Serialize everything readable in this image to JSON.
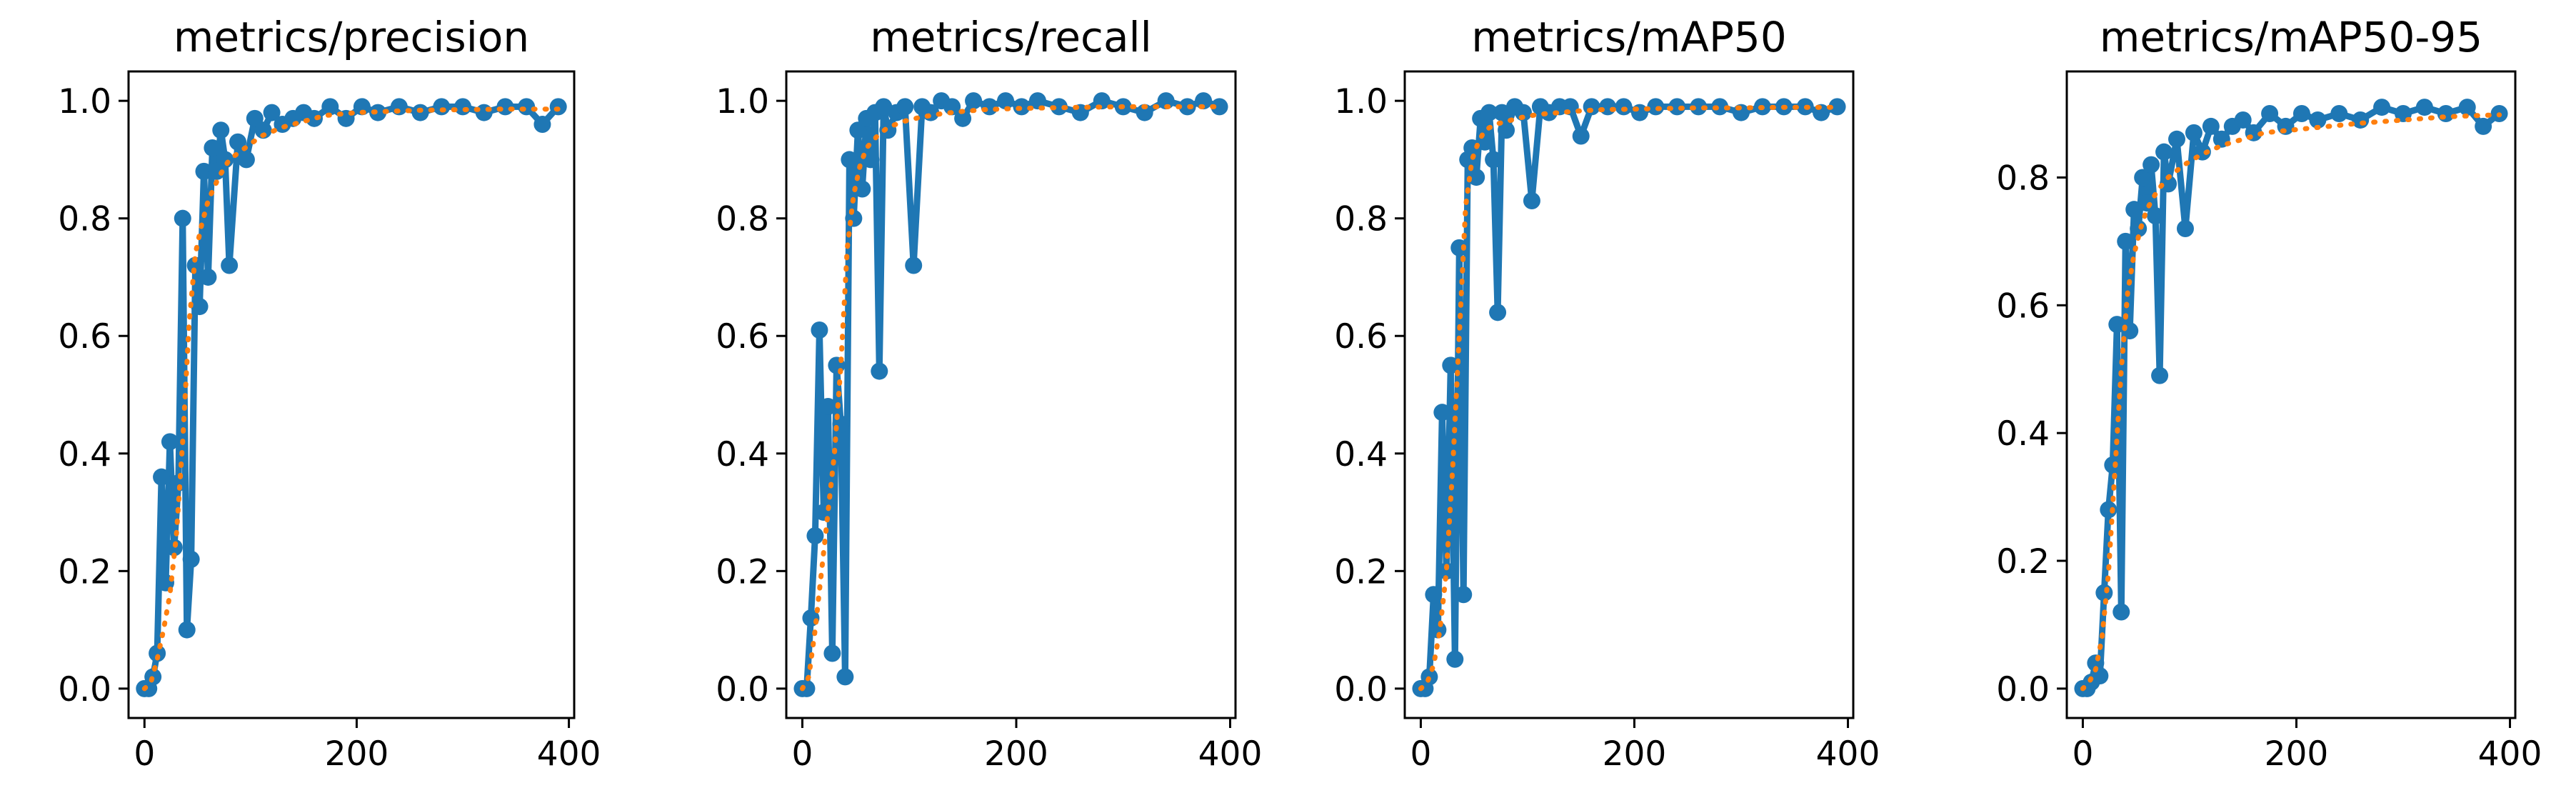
{
  "colors": {
    "raw": "#1f77b4",
    "smooth": "#ff7f0e",
    "axes": "#000000",
    "background": "#ffffff"
  },
  "chart_data": [
    {
      "type": "line",
      "title": "metrics/precision",
      "xlabel": "",
      "ylabel": "",
      "xlim": [
        -15,
        405
      ],
      "ylim": [
        -0.05,
        1.05
      ],
      "xticks": [
        0,
        200,
        400
      ],
      "xtick_labels": [
        "0",
        "200",
        "400"
      ],
      "yticks": [
        0.0,
        0.2,
        0.4,
        0.6,
        0.8,
        1.0
      ],
      "ytick_labels": [
        "0.0",
        "0.2",
        "0.4",
        "0.6",
        "0.8",
        "1.0"
      ],
      "grid": false,
      "legend": false,
      "series": [
        {
          "style": "raw-markers",
          "x": [
            0,
            4,
            8,
            12,
            16,
            20,
            24,
            28,
            32,
            36,
            40,
            44,
            48,
            52,
            56,
            60,
            64,
            68,
            72,
            76,
            80,
            88,
            96,
            104,
            112,
            120,
            130,
            140,
            150,
            160,
            175,
            190,
            205,
            220,
            240,
            260,
            280,
            300,
            320,
            340,
            360,
            375,
            390
          ],
          "y": [
            0.0,
            0.0,
            0.02,
            0.06,
            0.36,
            0.18,
            0.42,
            0.24,
            0.35,
            0.8,
            0.1,
            0.22,
            0.72,
            0.65,
            0.88,
            0.7,
            0.92,
            0.88,
            0.95,
            0.9,
            0.72,
            0.93,
            0.9,
            0.97,
            0.95,
            0.98,
            0.96,
            0.97,
            0.98,
            0.97,
            0.99,
            0.97,
            0.99,
            0.98,
            0.99,
            0.98,
            0.99,
            0.99,
            0.98,
            0.99,
            0.99,
            0.96,
            0.99
          ]
        },
        {
          "style": "smooth-dotted",
          "x": [
            0,
            6,
            12,
            18,
            24,
            30,
            36,
            42,
            48,
            54,
            60,
            70,
            80,
            95,
            110,
            130,
            150,
            170,
            200,
            230,
            260,
            300,
            340,
            370,
            390
          ],
          "y": [
            0.0,
            0.01,
            0.05,
            0.1,
            0.16,
            0.26,
            0.42,
            0.62,
            0.74,
            0.79,
            0.83,
            0.87,
            0.9,
            0.92,
            0.94,
            0.955,
            0.965,
            0.975,
            0.98,
            0.982,
            0.984,
            0.985,
            0.986,
            0.986,
            0.986
          ]
        }
      ]
    },
    {
      "type": "line",
      "title": "metrics/recall",
      "xlabel": "",
      "ylabel": "",
      "xlim": [
        -15,
        405
      ],
      "ylim": [
        -0.05,
        1.05
      ],
      "xticks": [
        0,
        200,
        400
      ],
      "xtick_labels": [
        "0",
        "200",
        "400"
      ],
      "yticks": [
        0.0,
        0.2,
        0.4,
        0.6,
        0.8,
        1.0
      ],
      "ytick_labels": [
        "0.0",
        "0.2",
        "0.4",
        "0.6",
        "0.8",
        "1.0"
      ],
      "grid": false,
      "legend": false,
      "series": [
        {
          "style": "raw-markers",
          "x": [
            0,
            4,
            8,
            12,
            16,
            20,
            24,
            28,
            32,
            36,
            40,
            44,
            48,
            52,
            56,
            60,
            64,
            68,
            72,
            76,
            80,
            88,
            96,
            104,
            112,
            120,
            130,
            140,
            150,
            160,
            175,
            190,
            205,
            220,
            240,
            260,
            280,
            300,
            320,
            340,
            360,
            375,
            390
          ],
          "y": [
            0.0,
            0.0,
            0.12,
            0.26,
            0.61,
            0.3,
            0.48,
            0.06,
            0.55,
            0.45,
            0.02,
            0.9,
            0.8,
            0.95,
            0.85,
            0.97,
            0.9,
            0.98,
            0.54,
            0.99,
            0.95,
            0.98,
            0.99,
            0.72,
            0.99,
            0.98,
            1.0,
            0.99,
            0.97,
            1.0,
            0.99,
            1.0,
            0.99,
            1.0,
            0.99,
            0.98,
            1.0,
            0.99,
            0.98,
            1.0,
            0.99,
            1.0,
            0.99
          ]
        },
        {
          "style": "smooth-dotted",
          "x": [
            0,
            6,
            12,
            18,
            24,
            30,
            36,
            42,
            48,
            54,
            60,
            70,
            80,
            95,
            110,
            130,
            150,
            170,
            200,
            230,
            260,
            300,
            340,
            370,
            390
          ],
          "y": [
            0.0,
            0.02,
            0.1,
            0.2,
            0.3,
            0.4,
            0.55,
            0.75,
            0.84,
            0.89,
            0.92,
            0.94,
            0.955,
            0.965,
            0.972,
            0.978,
            0.982,
            0.985,
            0.987,
            0.988,
            0.989,
            0.99,
            0.99,
            0.99,
            0.99
          ]
        }
      ]
    },
    {
      "type": "line",
      "title": "metrics/mAP50",
      "xlabel": "",
      "ylabel": "",
      "xlim": [
        -15,
        405
      ],
      "ylim": [
        -0.05,
        1.05
      ],
      "xticks": [
        0,
        200,
        400
      ],
      "xtick_labels": [
        "0",
        "200",
        "400"
      ],
      "yticks": [
        0.0,
        0.2,
        0.4,
        0.6,
        0.8,
        1.0
      ],
      "ytick_labels": [
        "0.0",
        "0.2",
        "0.4",
        "0.6",
        "0.8",
        "1.0"
      ],
      "grid": false,
      "legend": false,
      "series": [
        {
          "style": "raw-markers",
          "x": [
            0,
            4,
            8,
            12,
            16,
            20,
            24,
            28,
            32,
            36,
            40,
            44,
            48,
            52,
            56,
            60,
            64,
            68,
            72,
            76,
            80,
            88,
            96,
            104,
            112,
            120,
            130,
            140,
            150,
            160,
            175,
            190,
            205,
            220,
            240,
            260,
            280,
            300,
            320,
            340,
            360,
            375,
            390
          ],
          "y": [
            0.0,
            0.0,
            0.02,
            0.16,
            0.1,
            0.47,
            0.2,
            0.55,
            0.05,
            0.75,
            0.16,
            0.9,
            0.92,
            0.87,
            0.97,
            0.93,
            0.98,
            0.9,
            0.64,
            0.98,
            0.95,
            0.99,
            0.98,
            0.83,
            0.99,
            0.98,
            0.99,
            0.99,
            0.94,
            0.99,
            0.99,
            0.99,
            0.98,
            0.99,
            0.99,
            0.99,
            0.99,
            0.98,
            0.99,
            0.99,
            0.99,
            0.98,
            0.99
          ]
        },
        {
          "style": "smooth-dotted",
          "x": [
            0,
            6,
            12,
            18,
            24,
            30,
            36,
            42,
            48,
            54,
            60,
            70,
            80,
            95,
            110,
            130,
            150,
            170,
            200,
            230,
            260,
            300,
            340,
            370,
            390
          ],
          "y": [
            0.0,
            0.01,
            0.04,
            0.1,
            0.2,
            0.38,
            0.6,
            0.82,
            0.9,
            0.93,
            0.95,
            0.96,
            0.965,
            0.972,
            0.977,
            0.98,
            0.983,
            0.985,
            0.986,
            0.987,
            0.988,
            0.988,
            0.989,
            0.989,
            0.989
          ]
        }
      ]
    },
    {
      "type": "line",
      "title": "metrics/mAP50-95",
      "xlabel": "",
      "ylabel": "",
      "xlim": [
        -15,
        405
      ],
      "ylim": [
        -0.046,
        0.966
      ],
      "xticks": [
        0,
        200,
        400
      ],
      "xtick_labels": [
        "0",
        "200",
        "400"
      ],
      "yticks": [
        0.0,
        0.2,
        0.4,
        0.6,
        0.8
      ],
      "ytick_labels": [
        "0.0",
        "0.2",
        "0.4",
        "0.6",
        "0.8"
      ],
      "grid": false,
      "legend": false,
      "series": [
        {
          "style": "raw-markers",
          "x": [
            0,
            4,
            8,
            12,
            16,
            20,
            24,
            28,
            32,
            36,
            40,
            44,
            48,
            52,
            56,
            60,
            64,
            68,
            72,
            76,
            80,
            88,
            96,
            104,
            112,
            120,
            130,
            140,
            150,
            160,
            175,
            190,
            205,
            220,
            240,
            260,
            280,
            300,
            320,
            340,
            360,
            375,
            390
          ],
          "y": [
            0.0,
            0.0,
            0.01,
            0.04,
            0.02,
            0.15,
            0.28,
            0.35,
            0.57,
            0.12,
            0.7,
            0.56,
            0.75,
            0.72,
            0.8,
            0.76,
            0.82,
            0.74,
            0.49,
            0.84,
            0.79,
            0.86,
            0.72,
            0.87,
            0.84,
            0.88,
            0.86,
            0.88,
            0.89,
            0.87,
            0.9,
            0.88,
            0.9,
            0.89,
            0.9,
            0.89,
            0.91,
            0.9,
            0.91,
            0.9,
            0.91,
            0.88,
            0.9
          ]
        },
        {
          "style": "smooth-dotted",
          "x": [
            0,
            6,
            12,
            18,
            24,
            30,
            36,
            42,
            48,
            54,
            60,
            70,
            80,
            95,
            110,
            130,
            150,
            170,
            200,
            230,
            260,
            300,
            340,
            370,
            390
          ],
          "y": [
            0.0,
            0.01,
            0.03,
            0.08,
            0.18,
            0.34,
            0.5,
            0.62,
            0.68,
            0.72,
            0.75,
            0.78,
            0.8,
            0.82,
            0.835,
            0.85,
            0.86,
            0.87,
            0.875,
            0.88,
            0.885,
            0.89,
            0.895,
            0.897,
            0.898
          ]
        }
      ]
    }
  ]
}
